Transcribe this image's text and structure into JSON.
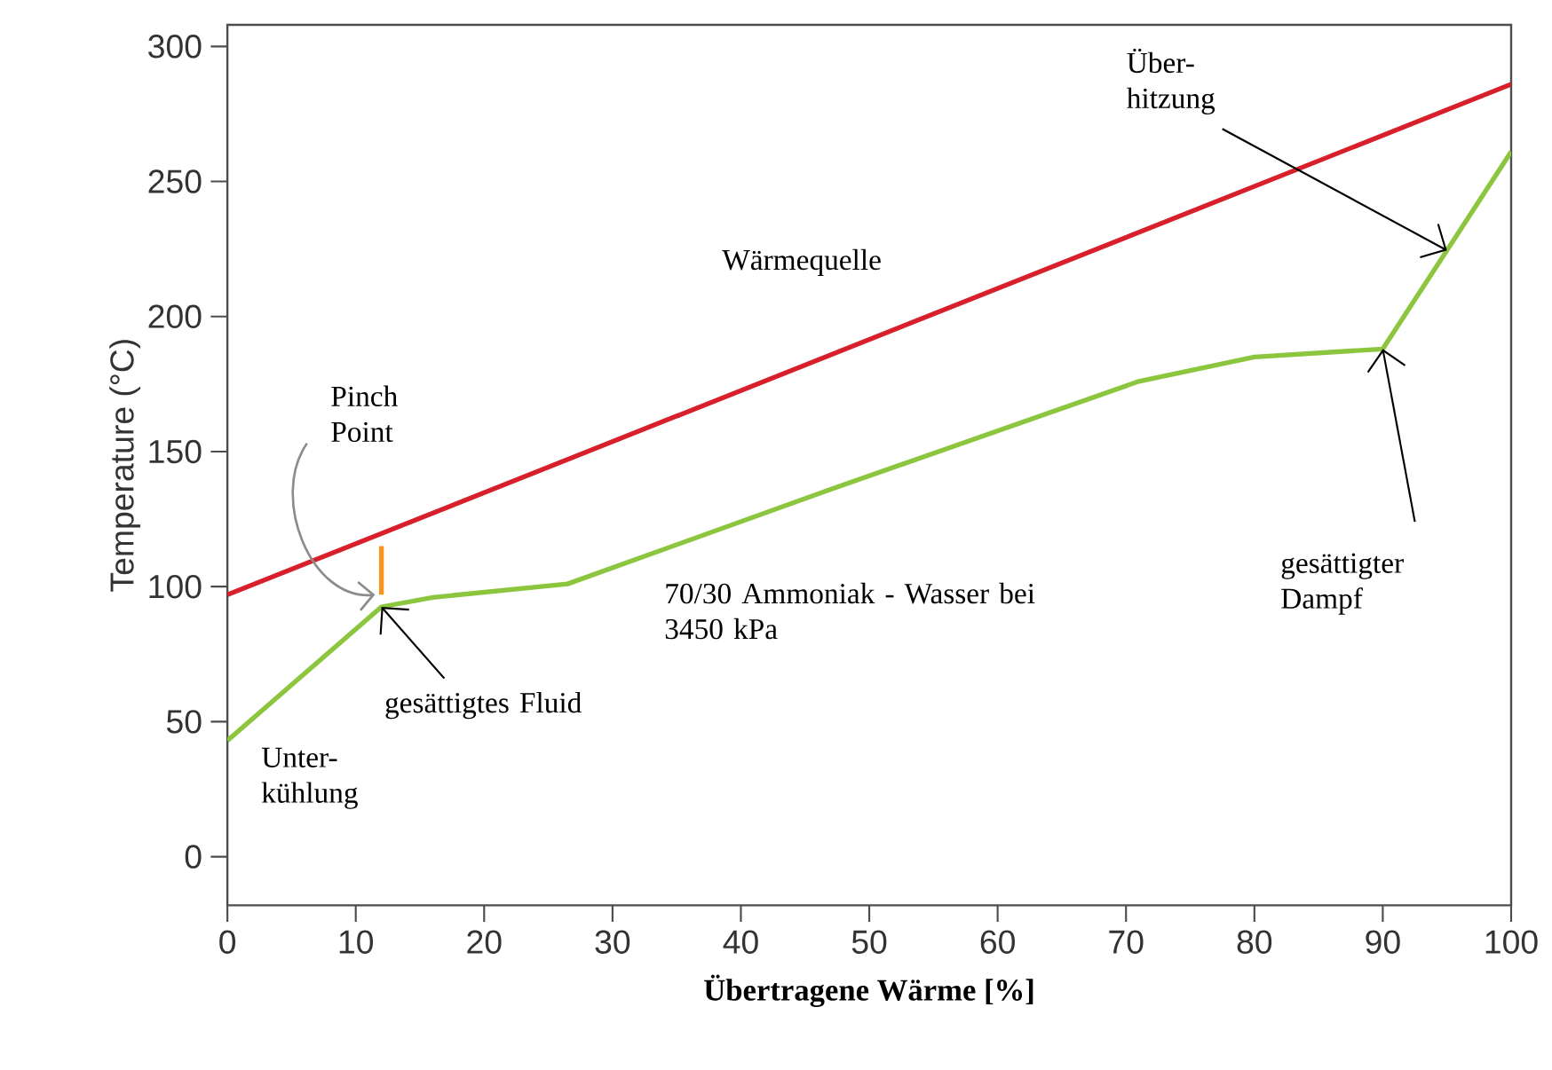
{
  "chart_data": {
    "type": "line",
    "xlabel": "**Übertragene Wärme [%]**",
    "ylabel": "Temperature (°C)",
    "xlim": [
      0,
      100
    ],
    "ylim": [
      -18,
      308
    ],
    "xticks": [
      0,
      10,
      20,
      30,
      40,
      50,
      60,
      70,
      80,
      90,
      100
    ],
    "yticks": [
      0,
      50,
      100,
      150,
      200,
      250,
      300
    ],
    "series": [
      {
        "color": "#d7202b",
        "x": [
          0,
          100
        ],
        "values": [
          97,
          286
        ]
      },
      {
        "color": "#8cc63f",
        "x": [
          0,
          12,
          16,
          26.5,
          47,
          71,
          80,
          90,
          100
        ],
        "values": [
          43,
          92.5,
          96,
          101,
          136,
          176,
          185,
          188,
          261
        ]
      },
      {
        "color": "#f7941d",
        "x": [
          12,
          12
        ],
        "values": [
          97,
          115
        ]
      }
    ],
    "annotations": [
      {
        "text": "Wärmequelle",
        "x": 50,
        "y": 191
      },
      {
        "text": "Pinch Point",
        "x": 11.5,
        "y": 97
      },
      "70/30 Ammoniak - Wasser bei 3450 kPa",
      {
        "text": "gesättigtes Fluid",
        "x": 12,
        "y": 92.5
      },
      {
        "text": "Unter-kühlung",
        "x": 5,
        "y": 63.6
      },
      {
        "text": "Über-hitzung",
        "x": 95,
        "y": 224.5
      },
      {
        "text": "gesättigter Dampf",
        "x": 90,
        "y": 188
      }
    ]
  }
}
